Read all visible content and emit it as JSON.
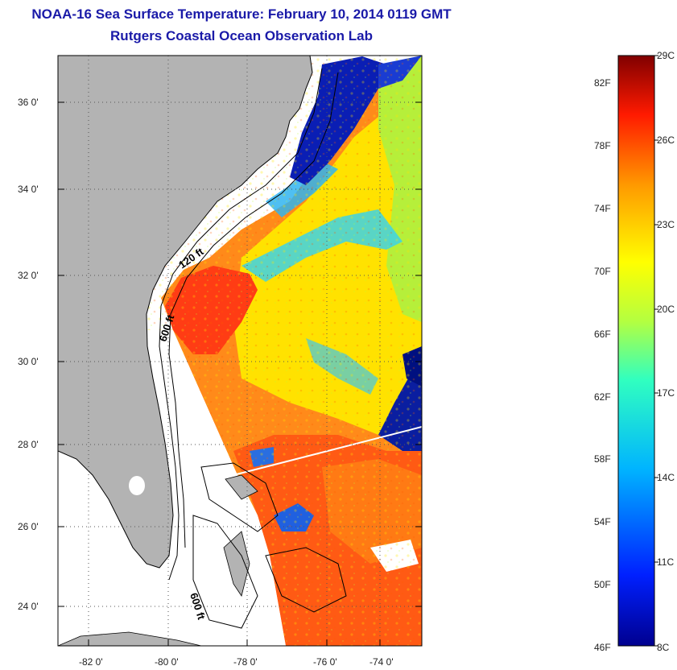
{
  "title": "NOAA-16 Sea Surface Temperature:  February 10, 2014 0119 GMT",
  "subtitle": "Rutgers Coastal Ocean Observation Lab",
  "map": {
    "lat_ticks": [
      "36 0'",
      "34 0'",
      "32 0'",
      "30 0'",
      "28 0'",
      "26 0'",
      "24 0'"
    ],
    "lon_ticks": [
      "-82 0'",
      "-80 0'",
      "-78 0'",
      "-76 0'",
      "-74 0'"
    ],
    "contour_labels": [
      "120 ft",
      "600 ft",
      "600 ft"
    ],
    "colors": {
      "land": "#b3b3b3",
      "water_nodata": "#ffffff",
      "grid": "#555555"
    }
  },
  "colorbar": {
    "fahrenheit": [
      "82F",
      "78F",
      "74F",
      "70F",
      "66F",
      "62F",
      "58F",
      "54F",
      "50F",
      "46F"
    ],
    "celsius": [
      "29C",
      "26C",
      "23C",
      "20C",
      "17C",
      "14C",
      "11C",
      "8C"
    ],
    "range_c": [
      8,
      29
    ]
  }
}
